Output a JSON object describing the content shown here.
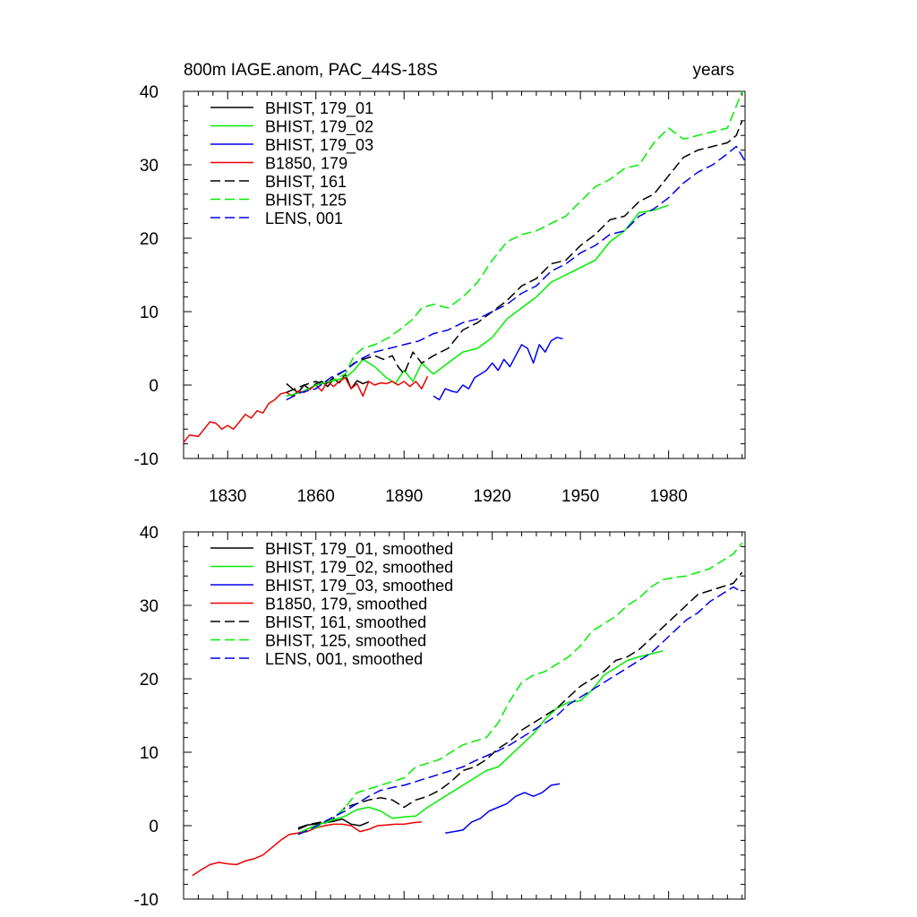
{
  "figure": {
    "title_left": "800m IAGE.anom, PAC_44S-18S",
    "title_right": "years"
  },
  "colors": {
    "black": "#000000",
    "green": "#00ee00",
    "blue": "#0000ee",
    "red": "#ee0000"
  },
  "chart_data": [
    {
      "type": "line",
      "panel": "raw",
      "xlim": [
        1815,
        2006
      ],
      "ylim": [
        -10,
        40
      ],
      "xticks": [
        1830,
        1860,
        1890,
        1920,
        1950,
        1980
      ],
      "xtick_labels": [
        "1830",
        "1860",
        "1890",
        "1920",
        "1950",
        "1980"
      ],
      "yticks": [
        -10,
        0,
        10,
        20,
        30,
        40
      ],
      "ytick_labels": [
        "-10",
        "0",
        "10",
        "20",
        "30",
        "40"
      ],
      "legend_position": "top-left",
      "series": [
        {
          "name": "BHIST, 179_01",
          "color": "#000000",
          "dash": "solid",
          "x": [
            1850,
            1852,
            1854,
            1856,
            1858,
            1860,
            1862,
            1864,
            1866,
            1868,
            1870,
            1872,
            1874,
            1876,
            1878
          ],
          "y": [
            0.2,
            -0.5,
            -1.0,
            0.0,
            -0.6,
            0.2,
            0.5,
            -0.2,
            0.8,
            0.3,
            1.5,
            -0.5,
            0.6,
            0.2,
            0.5
          ]
        },
        {
          "name": "BHIST, 179_02",
          "color": "#00ee00",
          "dash": "solid",
          "x": [
            1850,
            1855,
            1860,
            1865,
            1870,
            1873,
            1876,
            1880,
            1884,
            1887,
            1890,
            1893,
            1896,
            1900,
            1905,
            1910,
            1915,
            1920,
            1925,
            1930,
            1935,
            1940,
            1945,
            1950,
            1955,
            1960,
            1965,
            1970,
            1975,
            1980
          ],
          "y": [
            -1.5,
            -1.0,
            0.0,
            0.5,
            1.0,
            2.0,
            3.5,
            2.5,
            1.0,
            0.2,
            2.0,
            0.5,
            3.0,
            1.5,
            3.0,
            4.5,
            5.0,
            6.5,
            9.0,
            10.5,
            12.0,
            14.0,
            15.0,
            16.0,
            17.0,
            19.5,
            21.0,
            23.5,
            23.8,
            24.5
          ]
        },
        {
          "name": "BHIST, 179_03",
          "color": "#0000ee",
          "dash": "solid",
          "x": [
            1900,
            1902,
            1904,
            1906,
            1908,
            1910,
            1912,
            1914,
            1916,
            1918,
            1920,
            1922,
            1924,
            1926,
            1928,
            1930,
            1932,
            1934,
            1936,
            1938,
            1940,
            1942,
            1944
          ],
          "y": [
            -1.5,
            -2.0,
            -0.5,
            -0.8,
            -1.0,
            0.0,
            -0.5,
            1.0,
            1.5,
            2.0,
            3.0,
            2.0,
            3.5,
            2.5,
            4.0,
            5.5,
            5.0,
            3.0,
            5.5,
            4.5,
            6.0,
            6.5,
            6.3
          ]
        },
        {
          "name": "B1850, 179",
          "color": "#ee0000",
          "dash": "solid",
          "x": [
            1815,
            1817,
            1820,
            1822,
            1824,
            1826,
            1828,
            1830,
            1832,
            1834,
            1836,
            1838,
            1840,
            1842,
            1844,
            1846,
            1848,
            1850,
            1852,
            1854,
            1856,
            1858,
            1860,
            1862,
            1864,
            1866,
            1868,
            1870,
            1872,
            1874,
            1876,
            1878,
            1880,
            1882,
            1884,
            1886,
            1888,
            1890,
            1892,
            1894,
            1896,
            1898
          ],
          "y": [
            -7.8,
            -6.8,
            -7.0,
            -6.0,
            -5.0,
            -5.2,
            -6.0,
            -5.5,
            -6.0,
            -5.0,
            -4.0,
            -4.5,
            -3.5,
            -3.8,
            -2.5,
            -2.0,
            -1.2,
            -1.0,
            -1.5,
            -0.8,
            -1.0,
            -0.5,
            0.0,
            -0.8,
            0.5,
            -0.2,
            0.5,
            1.0,
            -0.5,
            0.2,
            -1.5,
            0.5,
            0.0,
            0.3,
            0.2,
            0.5,
            0.0,
            0.5,
            -0.2,
            0.5,
            -0.5,
            1.2
          ]
        },
        {
          "name": "BHIST, 161",
          "color": "#000000",
          "dash": "dash",
          "x": [
            1850,
            1853,
            1856,
            1860,
            1863,
            1866,
            1870,
            1873,
            1876,
            1880,
            1883,
            1886,
            1888,
            1890,
            1893,
            1896,
            1900,
            1905,
            1910,
            1915,
            1920,
            1925,
            1930,
            1935,
            1940,
            1945,
            1950,
            1955,
            1960,
            1965,
            1970,
            1975,
            1980,
            1985,
            1990,
            1995,
            2000,
            2003,
            2005
          ],
          "y": [
            -1.0,
            -0.5,
            0.0,
            0.5,
            0.0,
            1.0,
            2.0,
            3.0,
            3.5,
            4.0,
            3.5,
            4.0,
            2.5,
            1.5,
            4.5,
            3.0,
            4.0,
            5.0,
            7.5,
            8.5,
            10.0,
            11.5,
            13.5,
            14.5,
            16.5,
            17.0,
            19.0,
            20.5,
            22.5,
            23.0,
            25.0,
            26.0,
            28.5,
            31.0,
            32.0,
            32.5,
            33.0,
            34.0,
            36.0
          ]
        },
        {
          "name": "BHIST, 125",
          "color": "#00ee00",
          "dash": "dash",
          "x": [
            1850,
            1855,
            1860,
            1865,
            1870,
            1873,
            1876,
            1880,
            1885,
            1890,
            1893,
            1896,
            1900,
            1905,
            1910,
            1915,
            1920,
            1925,
            1930,
            1935,
            1940,
            1945,
            1950,
            1955,
            1960,
            1965,
            1970,
            1975,
            1980,
            1985,
            1990,
            1995,
            2000,
            2003,
            2005
          ],
          "y": [
            -1.5,
            -1.0,
            0.0,
            0.5,
            1.5,
            4.0,
            5.0,
            5.5,
            6.5,
            8.0,
            9.0,
            10.5,
            11.0,
            10.5,
            12.0,
            14.0,
            17.0,
            19.5,
            20.5,
            21.0,
            22.0,
            23.0,
            25.0,
            27.0,
            28.0,
            29.5,
            30.0,
            33.0,
            35.0,
            33.5,
            34.0,
            34.5,
            35.0,
            38.0,
            40.0
          ]
        },
        {
          "name": "LENS, 001",
          "color": "#0000ee",
          "dash": "dash",
          "x": [
            1850,
            1855,
            1860,
            1865,
            1870,
            1875,
            1880,
            1885,
            1890,
            1895,
            1900,
            1905,
            1910,
            1915,
            1920,
            1925,
            1930,
            1935,
            1940,
            1945,
            1950,
            1955,
            1960,
            1965,
            1970,
            1975,
            1980,
            1985,
            1990,
            1995,
            2000,
            2003,
            2006
          ],
          "y": [
            -2.0,
            -1.0,
            -0.5,
            1.0,
            2.0,
            3.5,
            4.5,
            5.0,
            5.5,
            6.0,
            7.0,
            7.5,
            8.5,
            9.0,
            10.0,
            11.0,
            12.5,
            13.5,
            15.5,
            16.5,
            18.0,
            19.0,
            20.5,
            21.0,
            23.0,
            24.0,
            25.5,
            27.5,
            29.0,
            30.0,
            31.5,
            32.5,
            30.5
          ]
        }
      ]
    },
    {
      "type": "line",
      "panel": "smoothed",
      "xlim": [
        1815,
        2006
      ],
      "ylim": [
        -10,
        40
      ],
      "xticks": [
        1830,
        1860,
        1890,
        1920,
        1950,
        1980
      ],
      "yticks": [
        -10,
        0,
        10,
        20,
        30,
        40
      ],
      "ytick_labels": [
        "-10",
        "0",
        "10",
        "20",
        "30",
        "40"
      ],
      "legend_position": "top-left",
      "series": [
        {
          "name": "BHIST, 179_01, smoothed",
          "color": "#000000",
          "dash": "solid",
          "x": [
            1854,
            1857,
            1860,
            1863,
            1866,
            1869,
            1872,
            1875,
            1878
          ],
          "y": [
            -0.3,
            0.1,
            0.2,
            0.4,
            0.6,
            0.9,
            0.2,
            0.0,
            0.5
          ]
        },
        {
          "name": "BHIST, 179_02, smoothed",
          "color": "#00ee00",
          "dash": "solid",
          "x": [
            1854,
            1858,
            1862,
            1866,
            1870,
            1874,
            1878,
            1882,
            1886,
            1890,
            1894,
            1898,
            1902,
            1906,
            1910,
            1914,
            1918,
            1922,
            1926,
            1930,
            1934,
            1938,
            1942,
            1946,
            1950,
            1954,
            1958,
            1962,
            1966,
            1970,
            1974,
            1978
          ],
          "y": [
            -1.0,
            -0.3,
            0.3,
            0.8,
            1.3,
            2.2,
            2.5,
            2.0,
            1.0,
            1.2,
            1.3,
            2.5,
            3.5,
            4.5,
            5.5,
            6.5,
            7.5,
            8.0,
            9.5,
            11.0,
            12.5,
            14.5,
            16.0,
            16.8,
            17.0,
            18.5,
            20.5,
            21.5,
            22.5,
            23.0,
            23.4,
            23.8
          ]
        },
        {
          "name": "BHIST, 179_03, smoothed",
          "color": "#0000ee",
          "dash": "solid",
          "x": [
            1904,
            1907,
            1910,
            1913,
            1916,
            1919,
            1922,
            1925,
            1928,
            1931,
            1934,
            1937,
            1940,
            1943
          ],
          "y": [
            -1.0,
            -0.8,
            -0.6,
            0.5,
            1.0,
            2.0,
            2.5,
            3.0,
            4.0,
            4.5,
            4.0,
            4.5,
            5.5,
            5.7
          ]
        },
        {
          "name": "B1850, 179, smoothed",
          "color": "#ee0000",
          "dash": "solid",
          "x": [
            1818,
            1821,
            1824,
            1827,
            1830,
            1833,
            1836,
            1839,
            1842,
            1845,
            1848,
            1851,
            1854,
            1857,
            1860,
            1863,
            1866,
            1869,
            1872,
            1875,
            1878,
            1881,
            1884,
            1887,
            1890,
            1893,
            1896
          ],
          "y": [
            -6.8,
            -6.0,
            -5.3,
            -5.0,
            -5.2,
            -5.3,
            -4.8,
            -4.5,
            -4.0,
            -3.0,
            -2.0,
            -1.2,
            -1.0,
            -0.8,
            -0.3,
            0.0,
            0.2,
            0.2,
            0.0,
            -0.8,
            -0.5,
            0.0,
            0.1,
            0.2,
            0.2,
            0.4,
            0.5
          ]
        },
        {
          "name": "BHIST, 161, smoothed",
          "color": "#000000",
          "dash": "dash",
          "x": [
            1854,
            1858,
            1862,
            1866,
            1870,
            1874,
            1878,
            1882,
            1886,
            1888,
            1890,
            1894,
            1898,
            1902,
            1906,
            1910,
            1914,
            1918,
            1922,
            1926,
            1930,
            1934,
            1938,
            1942,
            1946,
            1950,
            1954,
            1958,
            1962,
            1966,
            1970,
            1974,
            1978,
            1982,
            1986,
            1990,
            1994,
            1998,
            2002,
            2005
          ],
          "y": [
            -0.5,
            0.2,
            0.5,
            1.0,
            2.5,
            3.0,
            3.5,
            3.8,
            3.5,
            3.0,
            2.5,
            3.5,
            4.0,
            4.8,
            6.0,
            7.5,
            8.0,
            9.0,
            10.5,
            11.5,
            13.0,
            14.0,
            15.0,
            16.0,
            17.5,
            19.0,
            20.0,
            21.0,
            22.5,
            23.0,
            24.0,
            25.5,
            27.0,
            28.5,
            30.0,
            31.5,
            32.0,
            32.5,
            33.0,
            34.5
          ]
        },
        {
          "name": "BHIST, 125, smoothed",
          "color": "#00ee00",
          "dash": "dash",
          "x": [
            1854,
            1858,
            1862,
            1866,
            1870,
            1874,
            1878,
            1882,
            1886,
            1890,
            1894,
            1898,
            1902,
            1906,
            1910,
            1914,
            1918,
            1922,
            1926,
            1930,
            1934,
            1938,
            1942,
            1946,
            1950,
            1954,
            1958,
            1962,
            1966,
            1970,
            1974,
            1978,
            1982,
            1986,
            1990,
            1994,
            1998,
            2002,
            2005
          ],
          "y": [
            -1.2,
            -0.5,
            0.0,
            1.0,
            2.5,
            4.5,
            5.0,
            5.5,
            6.0,
            6.5,
            8.0,
            8.5,
            9.0,
            10.0,
            11.0,
            11.5,
            12.0,
            14.0,
            17.0,
            19.5,
            20.5,
            21.0,
            22.0,
            23.0,
            24.5,
            26.5,
            27.5,
            28.5,
            30.0,
            31.0,
            32.5,
            33.5,
            33.8,
            34.0,
            34.5,
            35.0,
            36.0,
            37.0,
            38.5
          ]
        },
        {
          "name": "LENS, 001, smoothed",
          "color": "#0000ee",
          "dash": "dash",
          "x": [
            1854,
            1858,
            1862,
            1866,
            1870,
            1874,
            1878,
            1882,
            1886,
            1890,
            1894,
            1898,
            1902,
            1906,
            1910,
            1914,
            1918,
            1922,
            1926,
            1930,
            1934,
            1938,
            1942,
            1946,
            1950,
            1954,
            1958,
            1962,
            1966,
            1970,
            1974,
            1978,
            1982,
            1986,
            1990,
            1994,
            1998,
            2002,
            2005
          ],
          "y": [
            -1.2,
            -0.5,
            0.3,
            1.2,
            2.0,
            3.0,
            4.0,
            4.8,
            5.2,
            5.5,
            6.0,
            6.5,
            7.0,
            7.5,
            8.0,
            8.8,
            9.5,
            10.2,
            11.0,
            12.0,
            13.0,
            14.0,
            15.0,
            16.5,
            17.5,
            18.5,
            19.5,
            20.5,
            21.5,
            22.5,
            23.5,
            25.0,
            26.5,
            28.0,
            29.0,
            30.5,
            31.5,
            32.5,
            31.8
          ]
        }
      ]
    }
  ]
}
